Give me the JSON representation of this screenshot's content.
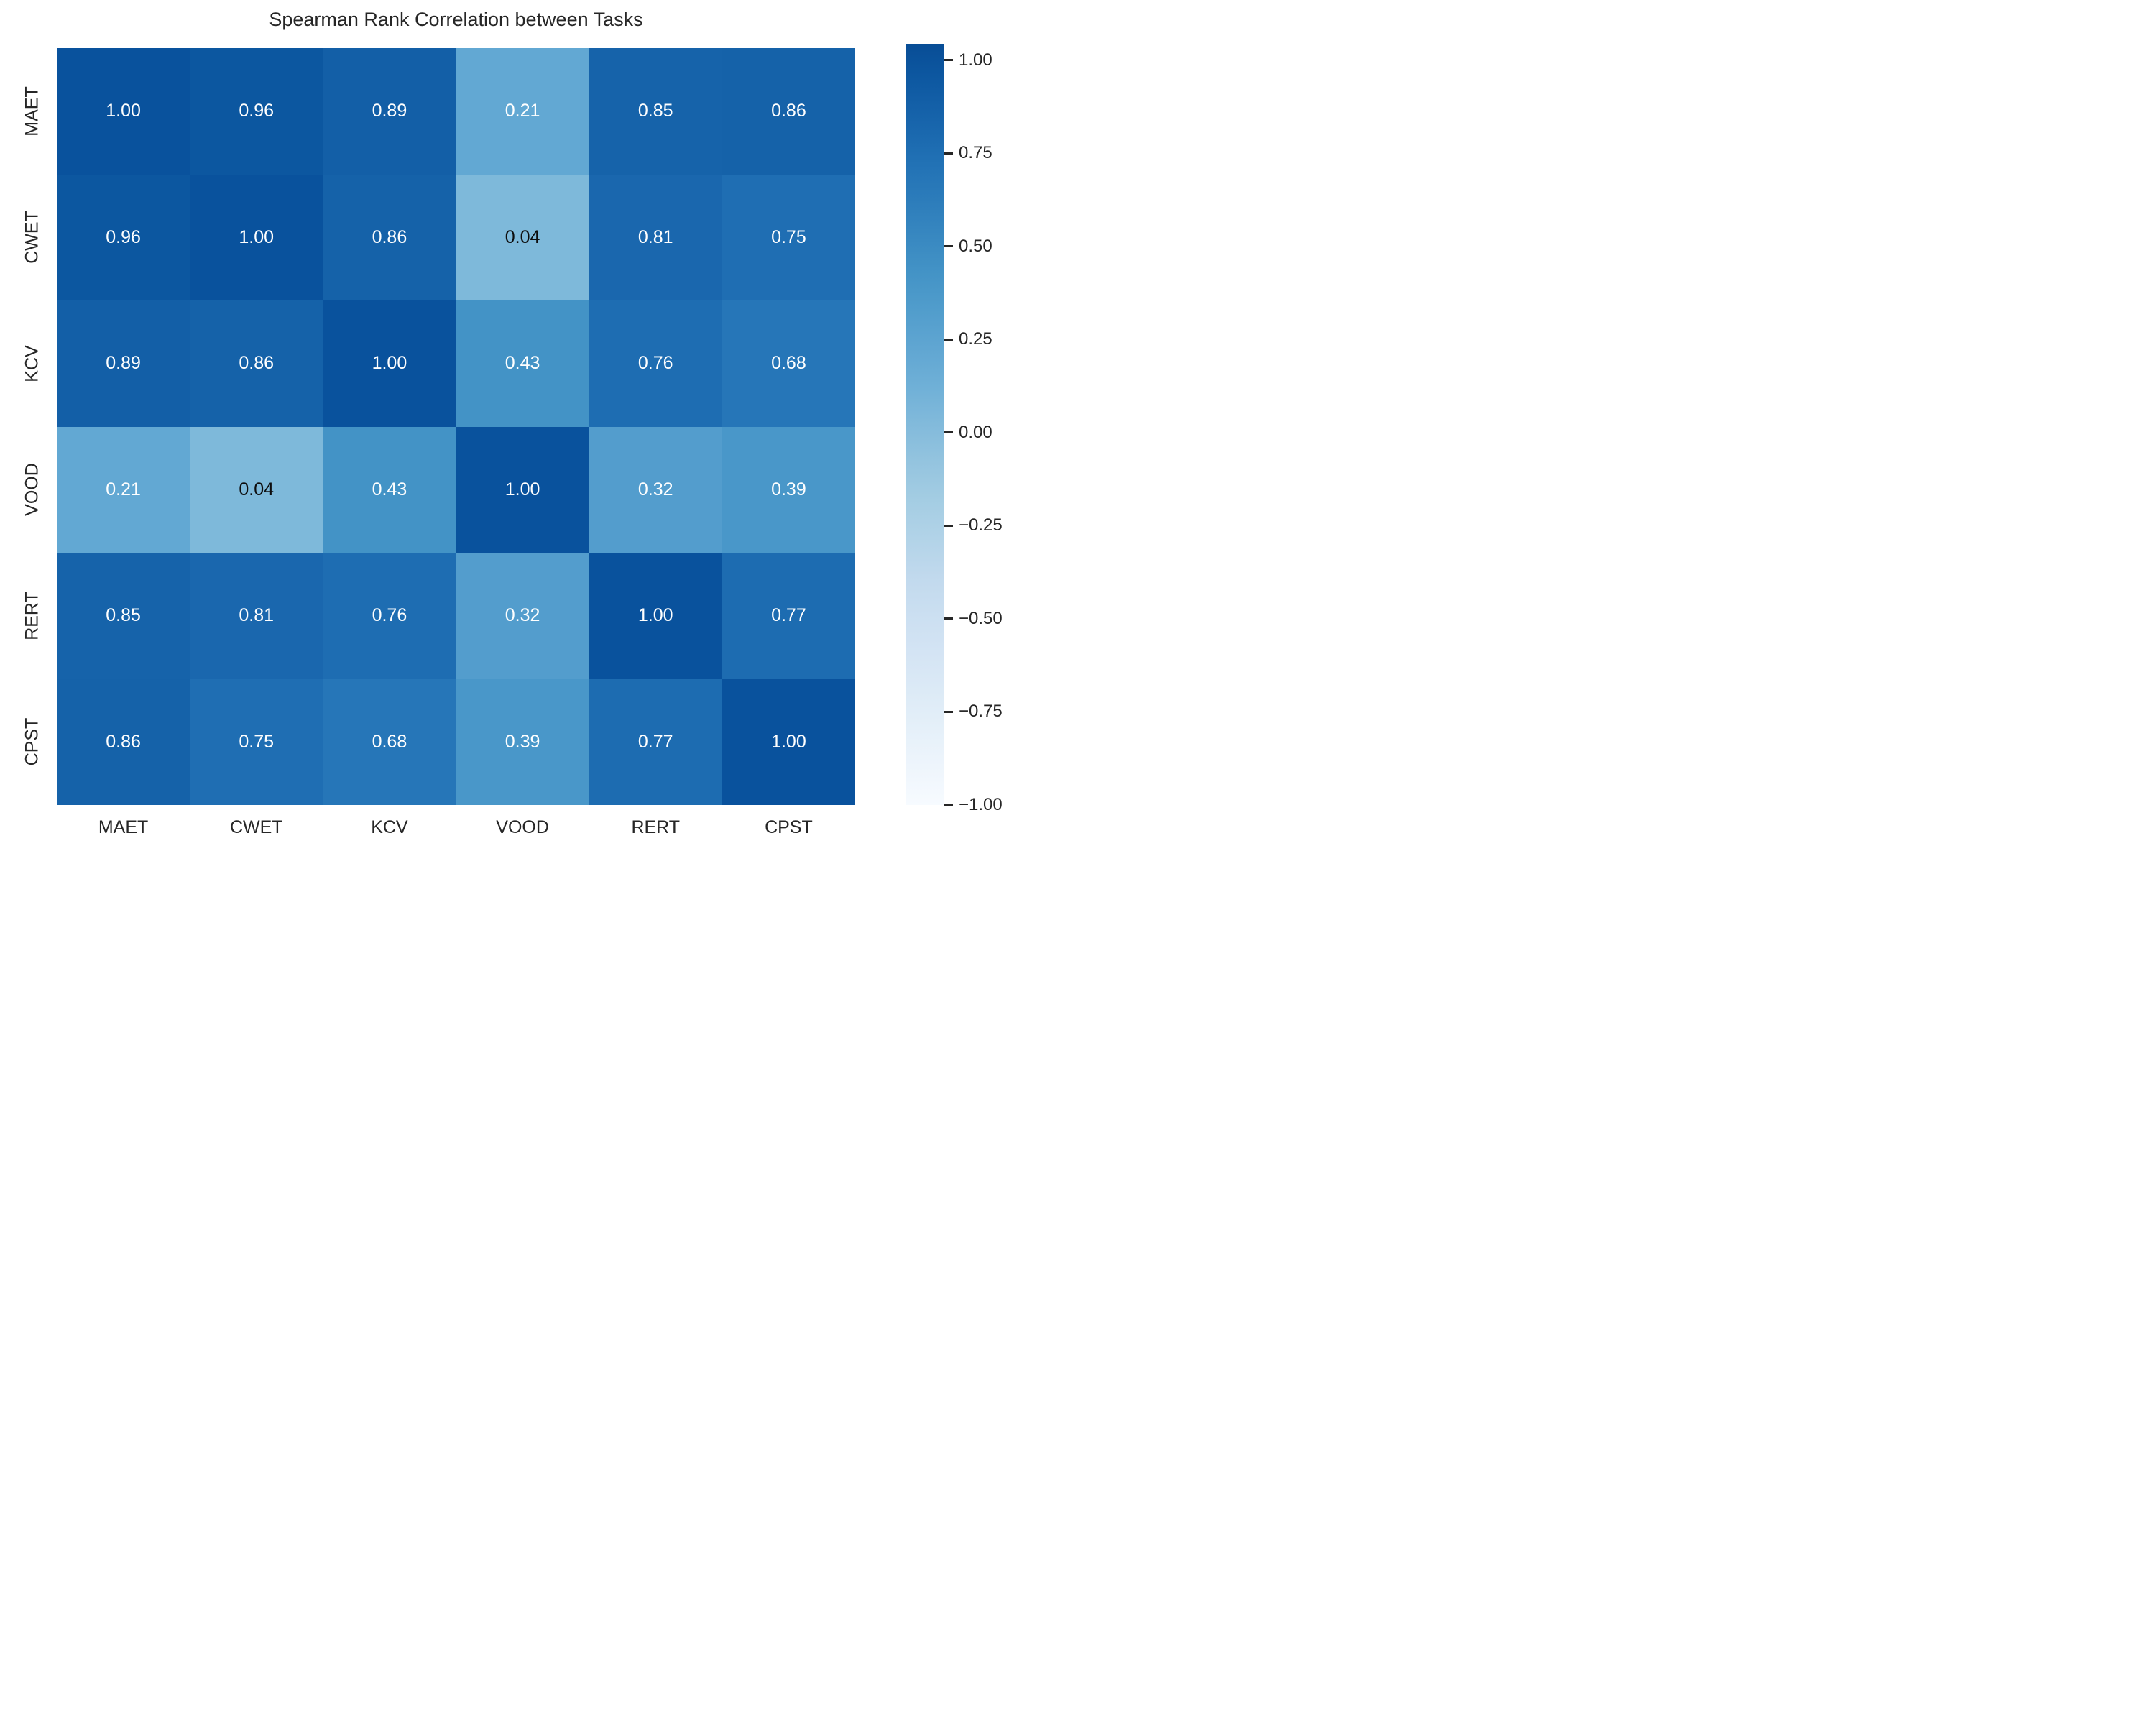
{
  "chart_data": {
    "type": "heatmap",
    "title": "Spearman Rank Correlation between Tasks",
    "categories": [
      "MAET",
      "CWET",
      "KCV",
      "VOOD",
      "RERT",
      "CPST"
    ],
    "matrix": [
      [
        1.0,
        0.96,
        0.89,
        0.21,
        0.85,
        0.86
      ],
      [
        0.96,
        1.0,
        0.86,
        0.04,
        0.81,
        0.75
      ],
      [
        0.89,
        0.86,
        1.0,
        0.43,
        0.76,
        0.68
      ],
      [
        0.21,
        0.04,
        0.43,
        1.0,
        0.32,
        0.39
      ],
      [
        0.85,
        0.81,
        0.76,
        0.32,
        1.0,
        0.77
      ],
      [
        0.86,
        0.75,
        0.68,
        0.39,
        0.77,
        1.0
      ]
    ],
    "value_decimals": 2,
    "grid": false,
    "colormap": {
      "name": "Blues",
      "stops": [
        "#f7fbff",
        "#deebf7",
        "#c6dbef",
        "#9ecae1",
        "#6baed6",
        "#4292c6",
        "#2171b5",
        "#08519c",
        "#08306b"
      ],
      "t_scale": 0.435,
      "vmin": -1,
      "vmax": 1
    },
    "colorbar": {
      "position": "right",
      "tick_labels": [
        "1.00",
        "0.75",
        "0.50",
        "0.25",
        "0.00",
        "−0.25",
        "−0.50",
        "−0.75",
        "−1.00"
      ],
      "tick_values": [
        1,
        0.75,
        0.5,
        0.25,
        0,
        -0.25,
        -0.5,
        -0.75,
        -1
      ],
      "bar_value_span": [
        -1,
        1.044
      ]
    },
    "annotation_text_colors": {
      "on_dark": "#ffffff",
      "on_light": "#0d0d0d"
    },
    "axis_text_color": "#262626",
    "background_color": "#ffffff"
  }
}
